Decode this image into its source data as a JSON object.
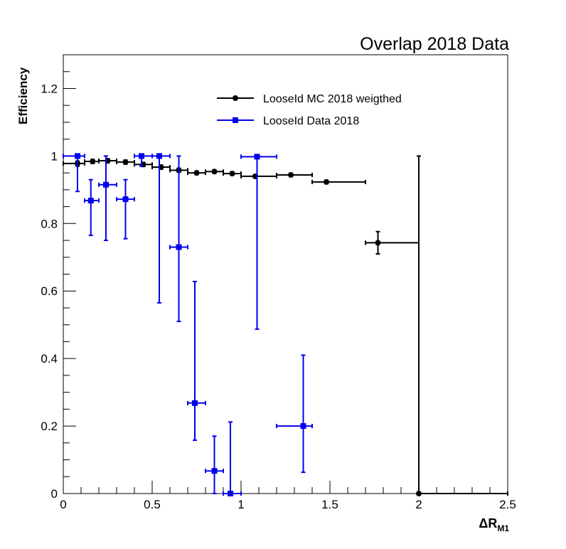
{
  "chart_data": {
    "type": "scatter",
    "title": "Overlap 2018 Data",
    "xlabel": "ΔR",
    "xlabel_sub": "M1",
    "ylabel": "Efficiency",
    "xlim": [
      0,
      2.5
    ],
    "ylim": [
      0,
      1.3
    ],
    "x_ticks": [
      0,
      0.5,
      1,
      1.5,
      2,
      2.5
    ],
    "x_tick_labels": [
      "0",
      "0.5",
      "1",
      "1.5",
      "2",
      "2.5"
    ],
    "y_ticks": [
      0,
      0.2,
      0.4,
      0.6,
      0.8,
      1,
      1.2
    ],
    "y_tick_labels": [
      "0",
      "0.2",
      "0.4",
      "0.6",
      "0.8",
      "1",
      "1.2"
    ],
    "grid": false,
    "legend_position": "top-center",
    "series": [
      {
        "name": "LooseId MC 2018 weigthed",
        "color": "#000000",
        "marker": "circle",
        "points": [
          {
            "x": 0.08,
            "y": 0.978,
            "xl": 0.0,
            "xh": 0.12,
            "yl": 0.97,
            "yh": 0.985
          },
          {
            "x": 0.165,
            "y": 0.984,
            "xl": 0.12,
            "xh": 0.2,
            "yl": 0.978,
            "yh": 0.99
          },
          {
            "x": 0.25,
            "y": 0.986,
            "xl": 0.2,
            "xh": 0.3,
            "yl": 0.98,
            "yh": 0.992
          },
          {
            "x": 0.35,
            "y": 0.982,
            "xl": 0.3,
            "xh": 0.4,
            "yl": 0.976,
            "yh": 0.988
          },
          {
            "x": 0.45,
            "y": 0.975,
            "xl": 0.4,
            "xh": 0.5,
            "yl": 0.969,
            "yh": 0.981
          },
          {
            "x": 0.55,
            "y": 0.967,
            "xl": 0.5,
            "xh": 0.6,
            "yl": 0.961,
            "yh": 0.973
          },
          {
            "x": 0.65,
            "y": 0.958,
            "xl": 0.6,
            "xh": 0.7,
            "yl": 0.952,
            "yh": 0.964
          },
          {
            "x": 0.75,
            "y": 0.95,
            "xl": 0.7,
            "xh": 0.8,
            "yl": 0.945,
            "yh": 0.955
          },
          {
            "x": 0.85,
            "y": 0.954,
            "xl": 0.8,
            "xh": 0.9,
            "yl": 0.949,
            "yh": 0.959
          },
          {
            "x": 0.95,
            "y": 0.948,
            "xl": 0.9,
            "xh": 1.0,
            "yl": 0.943,
            "yh": 0.953
          },
          {
            "x": 1.08,
            "y": 0.94,
            "xl": 1.0,
            "xh": 1.2,
            "yl": 0.935,
            "yh": 0.945
          },
          {
            "x": 1.28,
            "y": 0.944,
            "xl": 1.2,
            "xh": 1.4,
            "yl": 0.939,
            "yh": 0.949
          },
          {
            "x": 1.48,
            "y": 0.923,
            "xl": 1.4,
            "xh": 1.7,
            "yl": 0.918,
            "yh": 0.928
          },
          {
            "x": 1.77,
            "y": 0.743,
            "xl": 1.7,
            "xh": 2.0,
            "yl": 0.71,
            "yh": 0.776
          },
          {
            "x": 2.0,
            "y": 0.0,
            "xl": 2.0,
            "xh": 2.5,
            "yl": 0.0,
            "yh": 1.0
          }
        ]
      },
      {
        "name": "LooseId Data 2018",
        "color": "#0000ee",
        "marker": "square",
        "points": [
          {
            "x": 0.08,
            "y": 1.0,
            "xl": 0.0,
            "xh": 0.12,
            "yl": 0.895,
            "yh": 1.0
          },
          {
            "x": 0.155,
            "y": 0.868,
            "xl": 0.12,
            "xh": 0.2,
            "yl": 0.765,
            "yh": 0.93
          },
          {
            "x": 0.24,
            "y": 0.915,
            "xl": 0.2,
            "xh": 0.3,
            "yl": 0.75,
            "yh": 1.0
          },
          {
            "x": 0.35,
            "y": 0.872,
            "xl": 0.3,
            "xh": 0.4,
            "yl": 0.755,
            "yh": 0.93
          },
          {
            "x": 0.44,
            "y": 1.0,
            "xl": 0.4,
            "xh": 0.5,
            "yl": 0.97,
            "yh": 1.0
          },
          {
            "x": 0.54,
            "y": 1.0,
            "xl": 0.5,
            "xh": 0.6,
            "yl": 0.565,
            "yh": 1.0
          },
          {
            "x": 0.65,
            "y": 0.73,
            "xl": 0.6,
            "xh": 0.7,
            "yl": 0.51,
            "yh": 1.0
          },
          {
            "x": 0.74,
            "y": 0.268,
            "xl": 0.7,
            "xh": 0.8,
            "yl": 0.158,
            "yh": 0.628
          },
          {
            "x": 0.85,
            "y": 0.067,
            "xl": 0.8,
            "xh": 0.9,
            "yl": 0.0,
            "yh": 0.17
          },
          {
            "x": 0.94,
            "y": 0.0,
            "xl": 0.9,
            "xh": 1.0,
            "yl": 0.0,
            "yh": 0.212
          },
          {
            "x": 1.09,
            "y": 0.998,
            "xl": 1.0,
            "xh": 1.2,
            "yl": 0.487,
            "yh": 1.0
          },
          {
            "x": 1.35,
            "y": 0.2,
            "xl": 1.2,
            "xh": 1.4,
            "yl": 0.063,
            "yh": 0.41
          }
        ]
      }
    ]
  }
}
